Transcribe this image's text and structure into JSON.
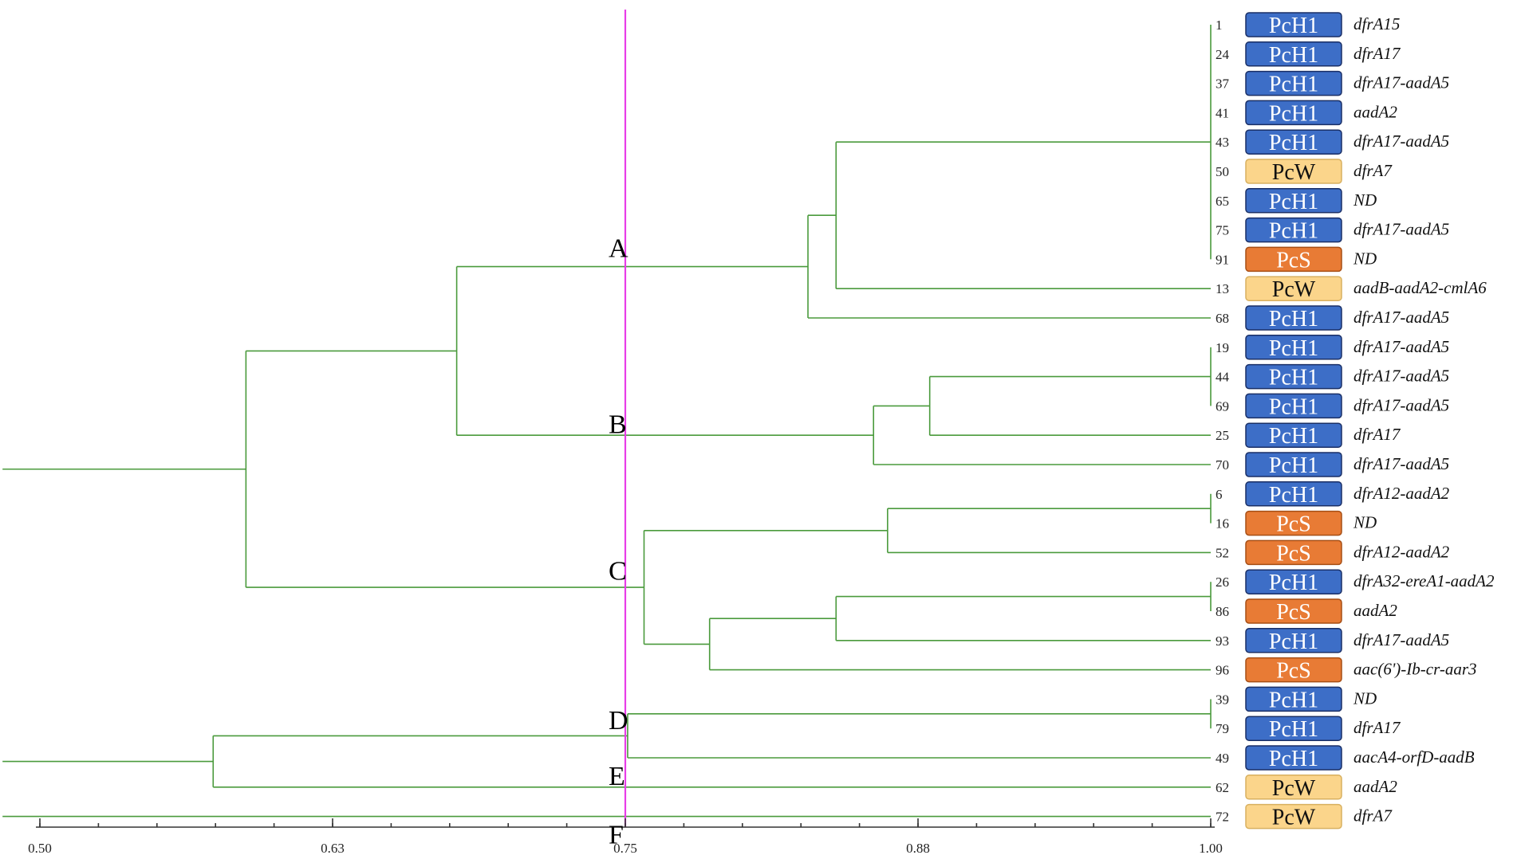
{
  "axis": {
    "ticks": [
      {
        "value": 0.5,
        "label": "0.50"
      },
      {
        "value": 0.625,
        "label": "0.63"
      },
      {
        "value": 0.75,
        "label": "0.75"
      },
      {
        "value": 0.875,
        "label": "0.88"
      },
      {
        "value": 1.0,
        "label": "1.00"
      }
    ],
    "min": 0.5,
    "max": 1.0,
    "minor_tick_step": 0.025
  },
  "cutoff": {
    "value": 0.75,
    "color": "#e83de8"
  },
  "colors": {
    "tree": "#4a9a3c",
    "axis": "#333333",
    "PcH1": {
      "fill": "#3d6ec7",
      "stroke": "#1a2f66",
      "text": "#ffffff"
    },
    "PcS": {
      "fill": "#e87b35",
      "stroke": "#a64e14",
      "text": "#ffffff"
    },
    "PcW": {
      "fill": "#fbd58b",
      "stroke": "#d8b060",
      "text": "#111111"
    }
  },
  "clusters": [
    {
      "label": "A",
      "row": 7.6
    },
    {
      "label": "B",
      "row": 13.6
    },
    {
      "label": "C",
      "row": 18.6
    },
    {
      "label": "D",
      "row": 23.7
    },
    {
      "label": "E",
      "row": 25.6
    },
    {
      "label": "F",
      "row": 27.6
    }
  ],
  "leaves": [
    {
      "id": "1",
      "phylogroup": "PcH1",
      "genes": "dfrA15"
    },
    {
      "id": "24",
      "phylogroup": "PcH1",
      "genes": "dfrA17"
    },
    {
      "id": "37",
      "phylogroup": "PcH1",
      "genes": "dfrA17-aadA5"
    },
    {
      "id": "41",
      "phylogroup": "PcH1",
      "genes": "aadA2"
    },
    {
      "id": "43",
      "phylogroup": "PcH1",
      "genes": "dfrA17-aadA5"
    },
    {
      "id": "50",
      "phylogroup": "PcW",
      "genes": "dfrA7"
    },
    {
      "id": "65",
      "phylogroup": "PcH1",
      "genes": "ND"
    },
    {
      "id": "75",
      "phylogroup": "PcH1",
      "genes": "dfrA17-aadA5"
    },
    {
      "id": "91",
      "phylogroup": "PcS",
      "genes": "ND"
    },
    {
      "id": "13",
      "phylogroup": "PcW",
      "genes": "aadB-aadA2-cmlA6"
    },
    {
      "id": "68",
      "phylogroup": "PcH1",
      "genes": "dfrA17-aadA5"
    },
    {
      "id": "19",
      "phylogroup": "PcH1",
      "genes": "dfrA17-aadA5"
    },
    {
      "id": "44",
      "phylogroup": "PcH1",
      "genes": "dfrA17-aadA5"
    },
    {
      "id": "69",
      "phylogroup": "PcH1",
      "genes": "dfrA17-aadA5"
    },
    {
      "id": "25",
      "phylogroup": "PcH1",
      "genes": "dfrA17"
    },
    {
      "id": "70",
      "phylogroup": "PcH1",
      "genes": "dfrA17-aadA5"
    },
    {
      "id": "6",
      "phylogroup": "PcH1",
      "genes": "dfrA12-aadA2"
    },
    {
      "id": "16",
      "phylogroup": "PcS",
      "genes": "ND"
    },
    {
      "id": "52",
      "phylogroup": "PcS",
      "genes": "dfrA12-aadA2"
    },
    {
      "id": "26",
      "phylogroup": "PcH1",
      "genes": "dfrA32-ereA1-aadA2"
    },
    {
      "id": "86",
      "phylogroup": "PcS",
      "genes": "aadA2"
    },
    {
      "id": "93",
      "phylogroup": "PcH1",
      "genes": "dfrA17-aadA5"
    },
    {
      "id": "96",
      "phylogroup": "PcS",
      "genes": "aac(6')-Ib-cr-aar3"
    },
    {
      "id": "39",
      "phylogroup": "PcH1",
      "genes": "ND"
    },
    {
      "id": "79",
      "phylogroup": "PcH1",
      "genes": "dfrA17"
    },
    {
      "id": "49",
      "phylogroup": "PcH1",
      "genes": "aacA4-orfD-aadB"
    },
    {
      "id": "62",
      "phylogroup": "PcW",
      "genes": "aadA2"
    },
    {
      "id": "72",
      "phylogroup": "PcW",
      "genes": "dfrA7"
    }
  ],
  "tree": {
    "nodes": [
      {
        "name": "n_A9",
        "sim": 1.0,
        "children": [
          0,
          1,
          2,
          3,
          4,
          5,
          6,
          7,
          8
        ]
      },
      {
        "name": "n_A10",
        "sim": 0.84,
        "children": [
          "n_A9",
          9
        ]
      },
      {
        "name": "n_A",
        "sim": 0.828,
        "children": [
          "n_A10",
          10
        ]
      },
      {
        "name": "n_B3",
        "sim": 1.0,
        "children": [
          11,
          12,
          13
        ]
      },
      {
        "name": "n_B4",
        "sim": 0.88,
        "children": [
          "n_B3",
          14
        ]
      },
      {
        "name": "n_B",
        "sim": 0.856,
        "children": [
          "n_B4",
          15
        ]
      },
      {
        "name": "n_AB",
        "sim": 0.678,
        "children": [
          "n_A",
          "n_B"
        ]
      },
      {
        "name": "n_C2",
        "sim": 1.0,
        "children": [
          16,
          17
        ]
      },
      {
        "name": "n_C3",
        "sim": 0.862,
        "children": [
          "n_C2",
          18
        ]
      },
      {
        "name": "n_C4",
        "sim": 1.0,
        "children": [
          19,
          20
        ]
      },
      {
        "name": "n_C5",
        "sim": 0.84,
        "children": [
          "n_C4",
          21
        ]
      },
      {
        "name": "n_C6",
        "sim": 0.786,
        "children": [
          "n_C5",
          22
        ]
      },
      {
        "name": "n_C",
        "sim": 0.758,
        "children": [
          "n_C3",
          "n_C6"
        ]
      },
      {
        "name": "n_ABC",
        "sim": 0.588,
        "children": [
          "n_AB",
          "n_C"
        ]
      },
      {
        "name": "n_D2",
        "sim": 1.0,
        "children": [
          23,
          24
        ]
      },
      {
        "name": "n_D",
        "sim": 0.751,
        "children": [
          "n_D2",
          25
        ]
      },
      {
        "name": "n_DE",
        "sim": 0.574,
        "children": [
          "n_D",
          26
        ]
      }
    ],
    "root_stems": [
      {
        "node": "n_ABC",
        "from": 0.497
      },
      {
        "node": "n_DE",
        "from": 0.497
      },
      {
        "leaf": 27,
        "from": 0.497
      }
    ]
  }
}
